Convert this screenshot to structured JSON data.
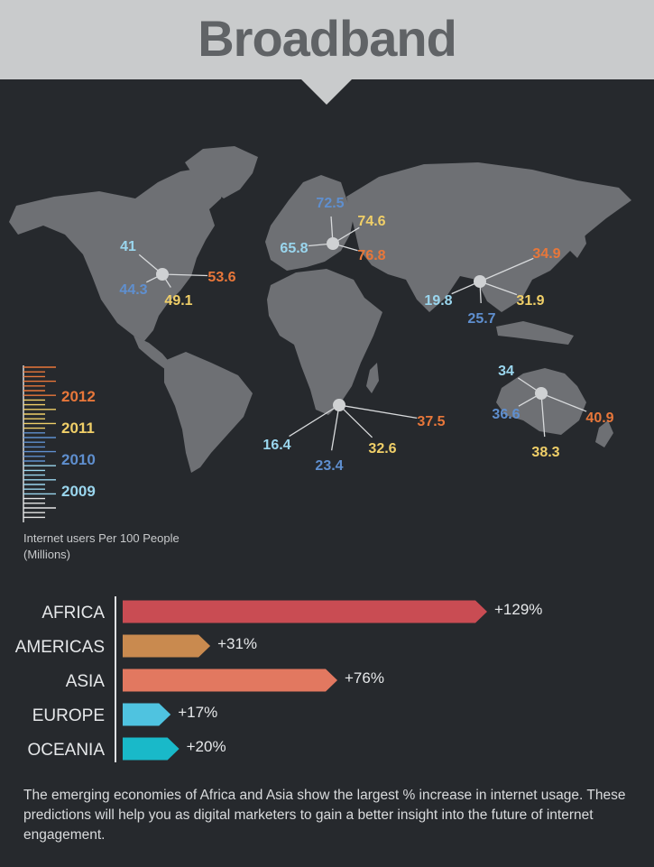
{
  "header": {
    "title": "Broadband"
  },
  "colors": {
    "y2012": "#e8773a",
    "y2011": "#f0cf68",
    "y2010": "#5f8fcf",
    "y2009": "#9ad6ee",
    "land": "#6e7074",
    "hub": "#cfd1d3"
  },
  "legend": {
    "years": [
      "2012",
      "2011",
      "2010",
      "2009"
    ],
    "caption": "Internet users Per 100 People (Millions)"
  },
  "chart_data": [
    {
      "type": "map",
      "series": [
        {
          "name": "2009"
        },
        {
          "name": "2010"
        },
        {
          "name": "2011"
        },
        {
          "name": "2012"
        }
      ],
      "regions": [
        {
          "id": "north-america",
          "values": {
            "2009": 41,
            "2010": 44.3,
            "2011": 49.1,
            "2012": 53.6
          }
        },
        {
          "id": "europe",
          "values": {
            "2009": 65.8,
            "2010": 72.5,
            "2011": 74.6,
            "2012": 76.8
          }
        },
        {
          "id": "asia",
          "values": {
            "2009": 19.8,
            "2010": 25.7,
            "2011": 31.9,
            "2012": 34.9
          }
        },
        {
          "id": "africa",
          "values": {
            "2009": 16.4,
            "2010": 23.4,
            "2011": 32.6,
            "2012": 37.5
          }
        },
        {
          "id": "oceania",
          "values": {
            "2009": 34,
            "2010": 36.6,
            "2011": 38.3,
            "2012": 40.9
          }
        }
      ]
    },
    {
      "type": "bar",
      "orientation": "horizontal",
      "categories": [
        "AFRICA",
        "AMERICAS",
        "ASIA",
        "EUROPE",
        "OCEANIA"
      ],
      "values": [
        129,
        31,
        76,
        17,
        20
      ],
      "value_labels": [
        "+129%",
        "+31%",
        "+76%",
        "+17%",
        "+20%"
      ],
      "colors": [
        "#c94c53",
        "#c98a4f",
        "#e27860",
        "#4fc3e0",
        "#19b9c9"
      ]
    }
  ],
  "footnote": "The emerging economies of Africa and Asia show the largest % increase in internet usage. These predictions will help you as digital marketers to gain a better insight into the future of internet engagement."
}
